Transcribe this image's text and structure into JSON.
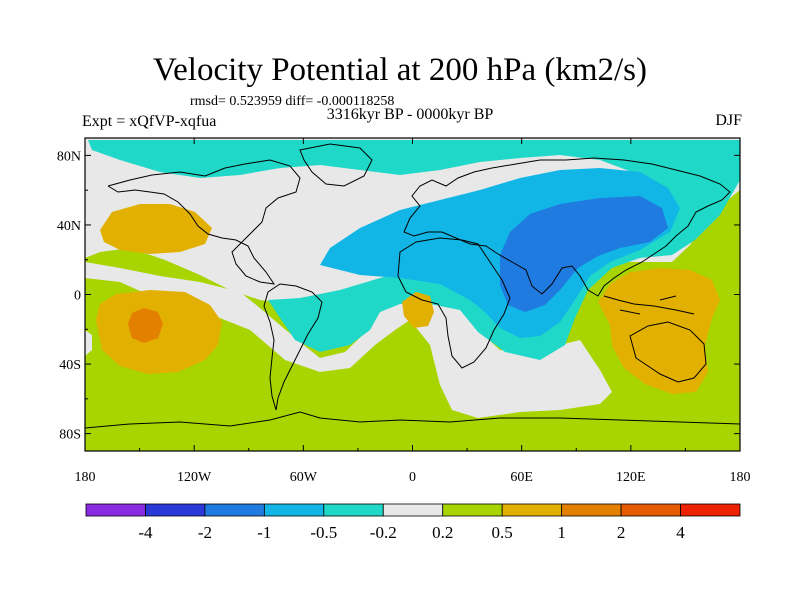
{
  "title": "Velocity Potential at 200 hPa (km2/s)",
  "stats": "rmsd= 0.523959 diff= -0.000118258",
  "period": "3316kyr BP - 0000kyr BP",
  "experiment": "Expt = xQfVP-xqfua",
  "season": "DJF",
  "y_ticks": [
    {
      "lat": 80,
      "label": "80N"
    },
    {
      "lat": 40,
      "label": "40N"
    },
    {
      "lat": 0,
      "label": "0"
    },
    {
      "lat": -40,
      "label": "40S"
    },
    {
      "lat": -80,
      "label": "80S"
    }
  ],
  "x_ticks": [
    {
      "lon": -180,
      "label": "180"
    },
    {
      "lon": -120,
      "label": "120W"
    },
    {
      "lon": -60,
      "label": "60W"
    },
    {
      "lon": 0,
      "label": "0"
    },
    {
      "lon": 60,
      "label": "60E"
    },
    {
      "lon": 120,
      "label": "120E"
    },
    {
      "lon": 180,
      "label": "180"
    }
  ],
  "colorbar": {
    "colors": [
      "#8a2be2",
      "#2a38d8",
      "#1f7be0",
      "#12b6e6",
      "#1fd8c8",
      "#e8e8e8",
      "#a8d400",
      "#e2b000",
      "#e38000",
      "#e65a00",
      "#ee2200"
    ],
    "labels": [
      "-4",
      "-2",
      "-1",
      "-0.5",
      "-0.2",
      "0.2",
      "0.5",
      "1",
      "2",
      "4"
    ]
  },
  "palette": {
    "bg": "#a8d400",
    "neutral": "#e8e8e8",
    "neg1": "#1fd8c8",
    "neg2": "#12b6e6",
    "neg3": "#1f7be0",
    "pos1": "#e2b000",
    "pos2": "#e38000"
  }
}
